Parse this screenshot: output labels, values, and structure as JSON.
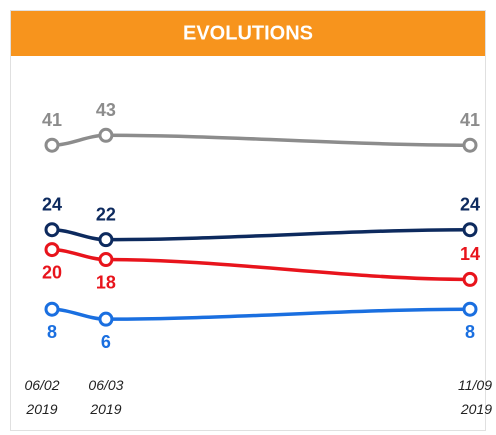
{
  "chart_data": {
    "type": "line",
    "title": "EVOLUTIONS",
    "x": [
      "06/02 2019",
      "06/03 2019",
      "11/09 2019"
    ],
    "series": [
      {
        "color": "#8c8c8c",
        "values": [
          41,
          43,
          41
        ]
      },
      {
        "color": "#0d2a5e",
        "values": [
          24,
          22,
          24
        ]
      },
      {
        "color": "#e8141c",
        "values": [
          20,
          18,
          14
        ]
      },
      {
        "color": "#1a6fe0",
        "values": [
          8,
          6,
          8
        ]
      }
    ],
    "ylim": [
      0,
      50
    ],
    "header_color": "#f7941d"
  }
}
